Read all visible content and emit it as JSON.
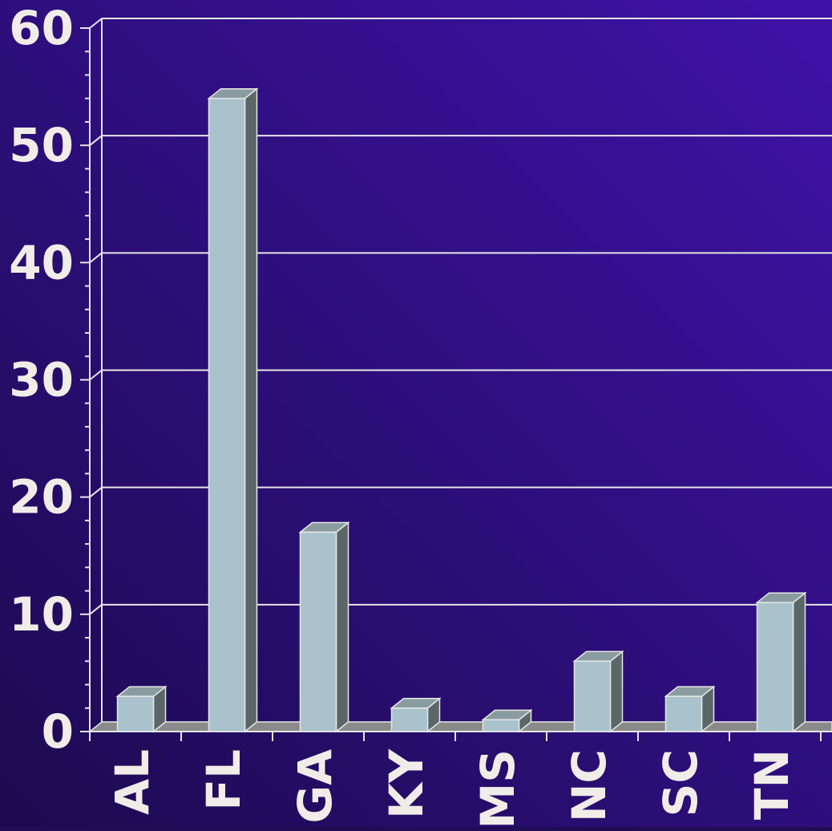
{
  "colors": {
    "background_dark": "#1c0b50",
    "background_light": "#3f12a8",
    "gridline": "#e6e6e6",
    "bar_front": "#a9c2cc",
    "bar_side": "#5a6668",
    "bar_top": "#8a9ca0",
    "floor": "#8a8a8a",
    "text": "#f0ede8"
  },
  "chart_data": {
    "type": "bar",
    "style": "3d-column",
    "categories": [
      "AL",
      "FL",
      "GA",
      "KY",
      "MS",
      "NC",
      "SC",
      "TN"
    ],
    "values": [
      3,
      54,
      17,
      2,
      1,
      6,
      3,
      11
    ],
    "ylim": [
      0,
      60
    ],
    "yticks": [
      "0",
      "10",
      "20",
      "30",
      "40",
      "50",
      "60"
    ],
    "y_major_step": 10,
    "y_minor_step": 2,
    "grid": true,
    "legend": "none",
    "title": "",
    "xlabel": "",
    "ylabel": ""
  }
}
